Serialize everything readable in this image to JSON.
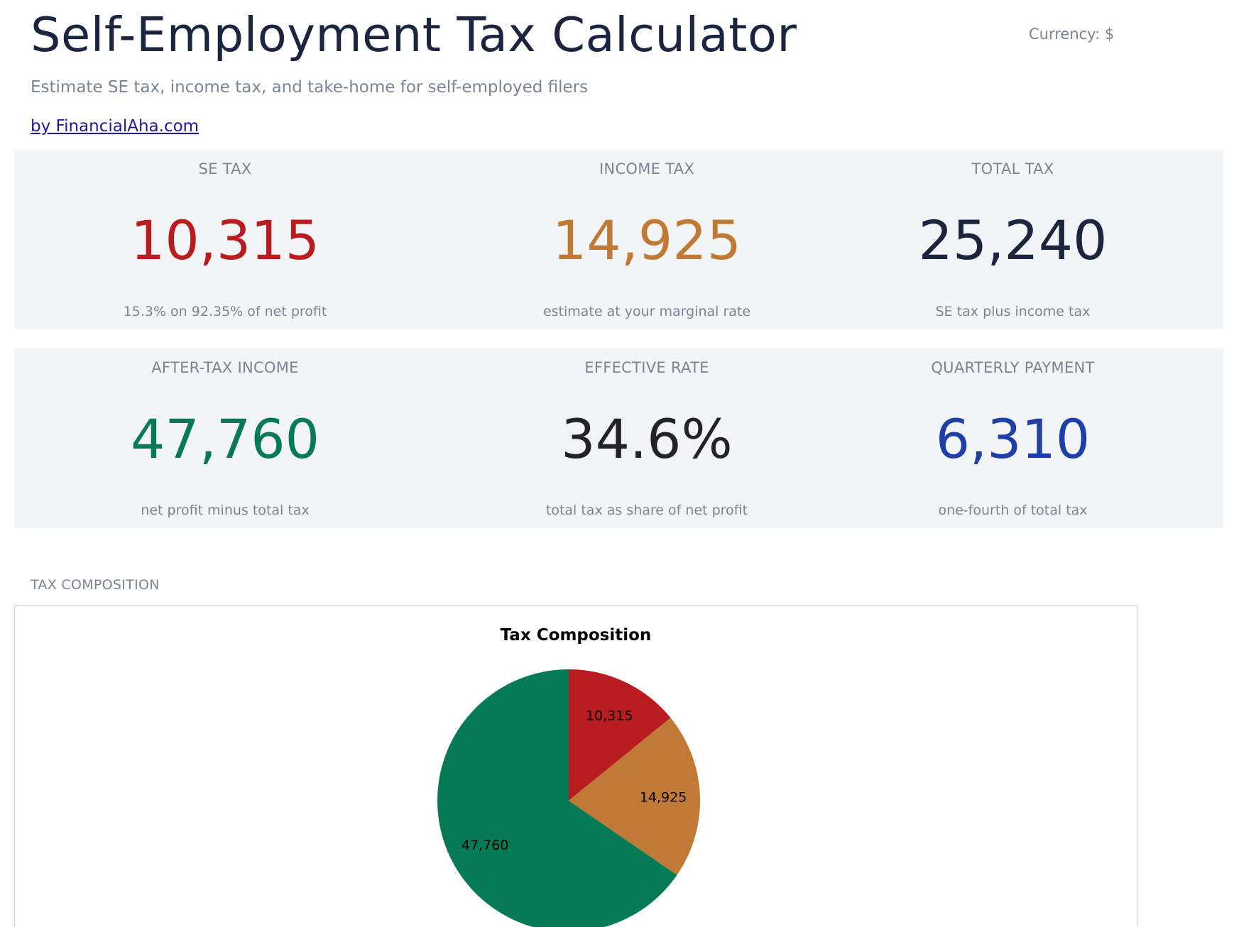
{
  "header": {
    "title": "Self-Employment Tax Calculator",
    "currency": "Currency: $",
    "subtitle": "Estimate SE tax, income tax, and take-home for self-employed filers",
    "byline": "by FinancialAha.com"
  },
  "cards": [
    {
      "label": "SE TAX",
      "value": "10,315",
      "note": "15.3% on 92.35% of net profit",
      "color": "#b81c1f"
    },
    {
      "label": "INCOME TAX",
      "value": "14,925",
      "note": "estimate at your marginal rate",
      "color": "#c17a36"
    },
    {
      "label": "TOTAL TAX",
      "value": "25,240",
      "note": "SE tax plus income tax",
      "color": "#1b2540"
    },
    {
      "label": "AFTER-TAX INCOME",
      "value": "47,760",
      "note": "net profit minus total tax",
      "color": "#067a55"
    },
    {
      "label": "EFFECTIVE RATE",
      "value": "34.6%",
      "note": "total tax as share of net profit",
      "color": "#222228"
    },
    {
      "label": "QUARTERLY PAYMENT",
      "value": "6,310",
      "note": "one-fourth of total tax",
      "color": "#1f3fa8"
    }
  ],
  "section": {
    "label": "TAX COMPOSITION"
  },
  "chart_data": {
    "type": "pie",
    "title": "Tax Composition",
    "categories": [
      "",
      "",
      ""
    ],
    "values": [
      10315,
      14925,
      47760
    ],
    "labels": [
      "10,315",
      "14,925",
      "47,760"
    ],
    "colors": [
      "#b81c1f",
      "#c17a36",
      "#067a55"
    ],
    "start_angle": "12 o'clock",
    "direction": "clockwise"
  }
}
